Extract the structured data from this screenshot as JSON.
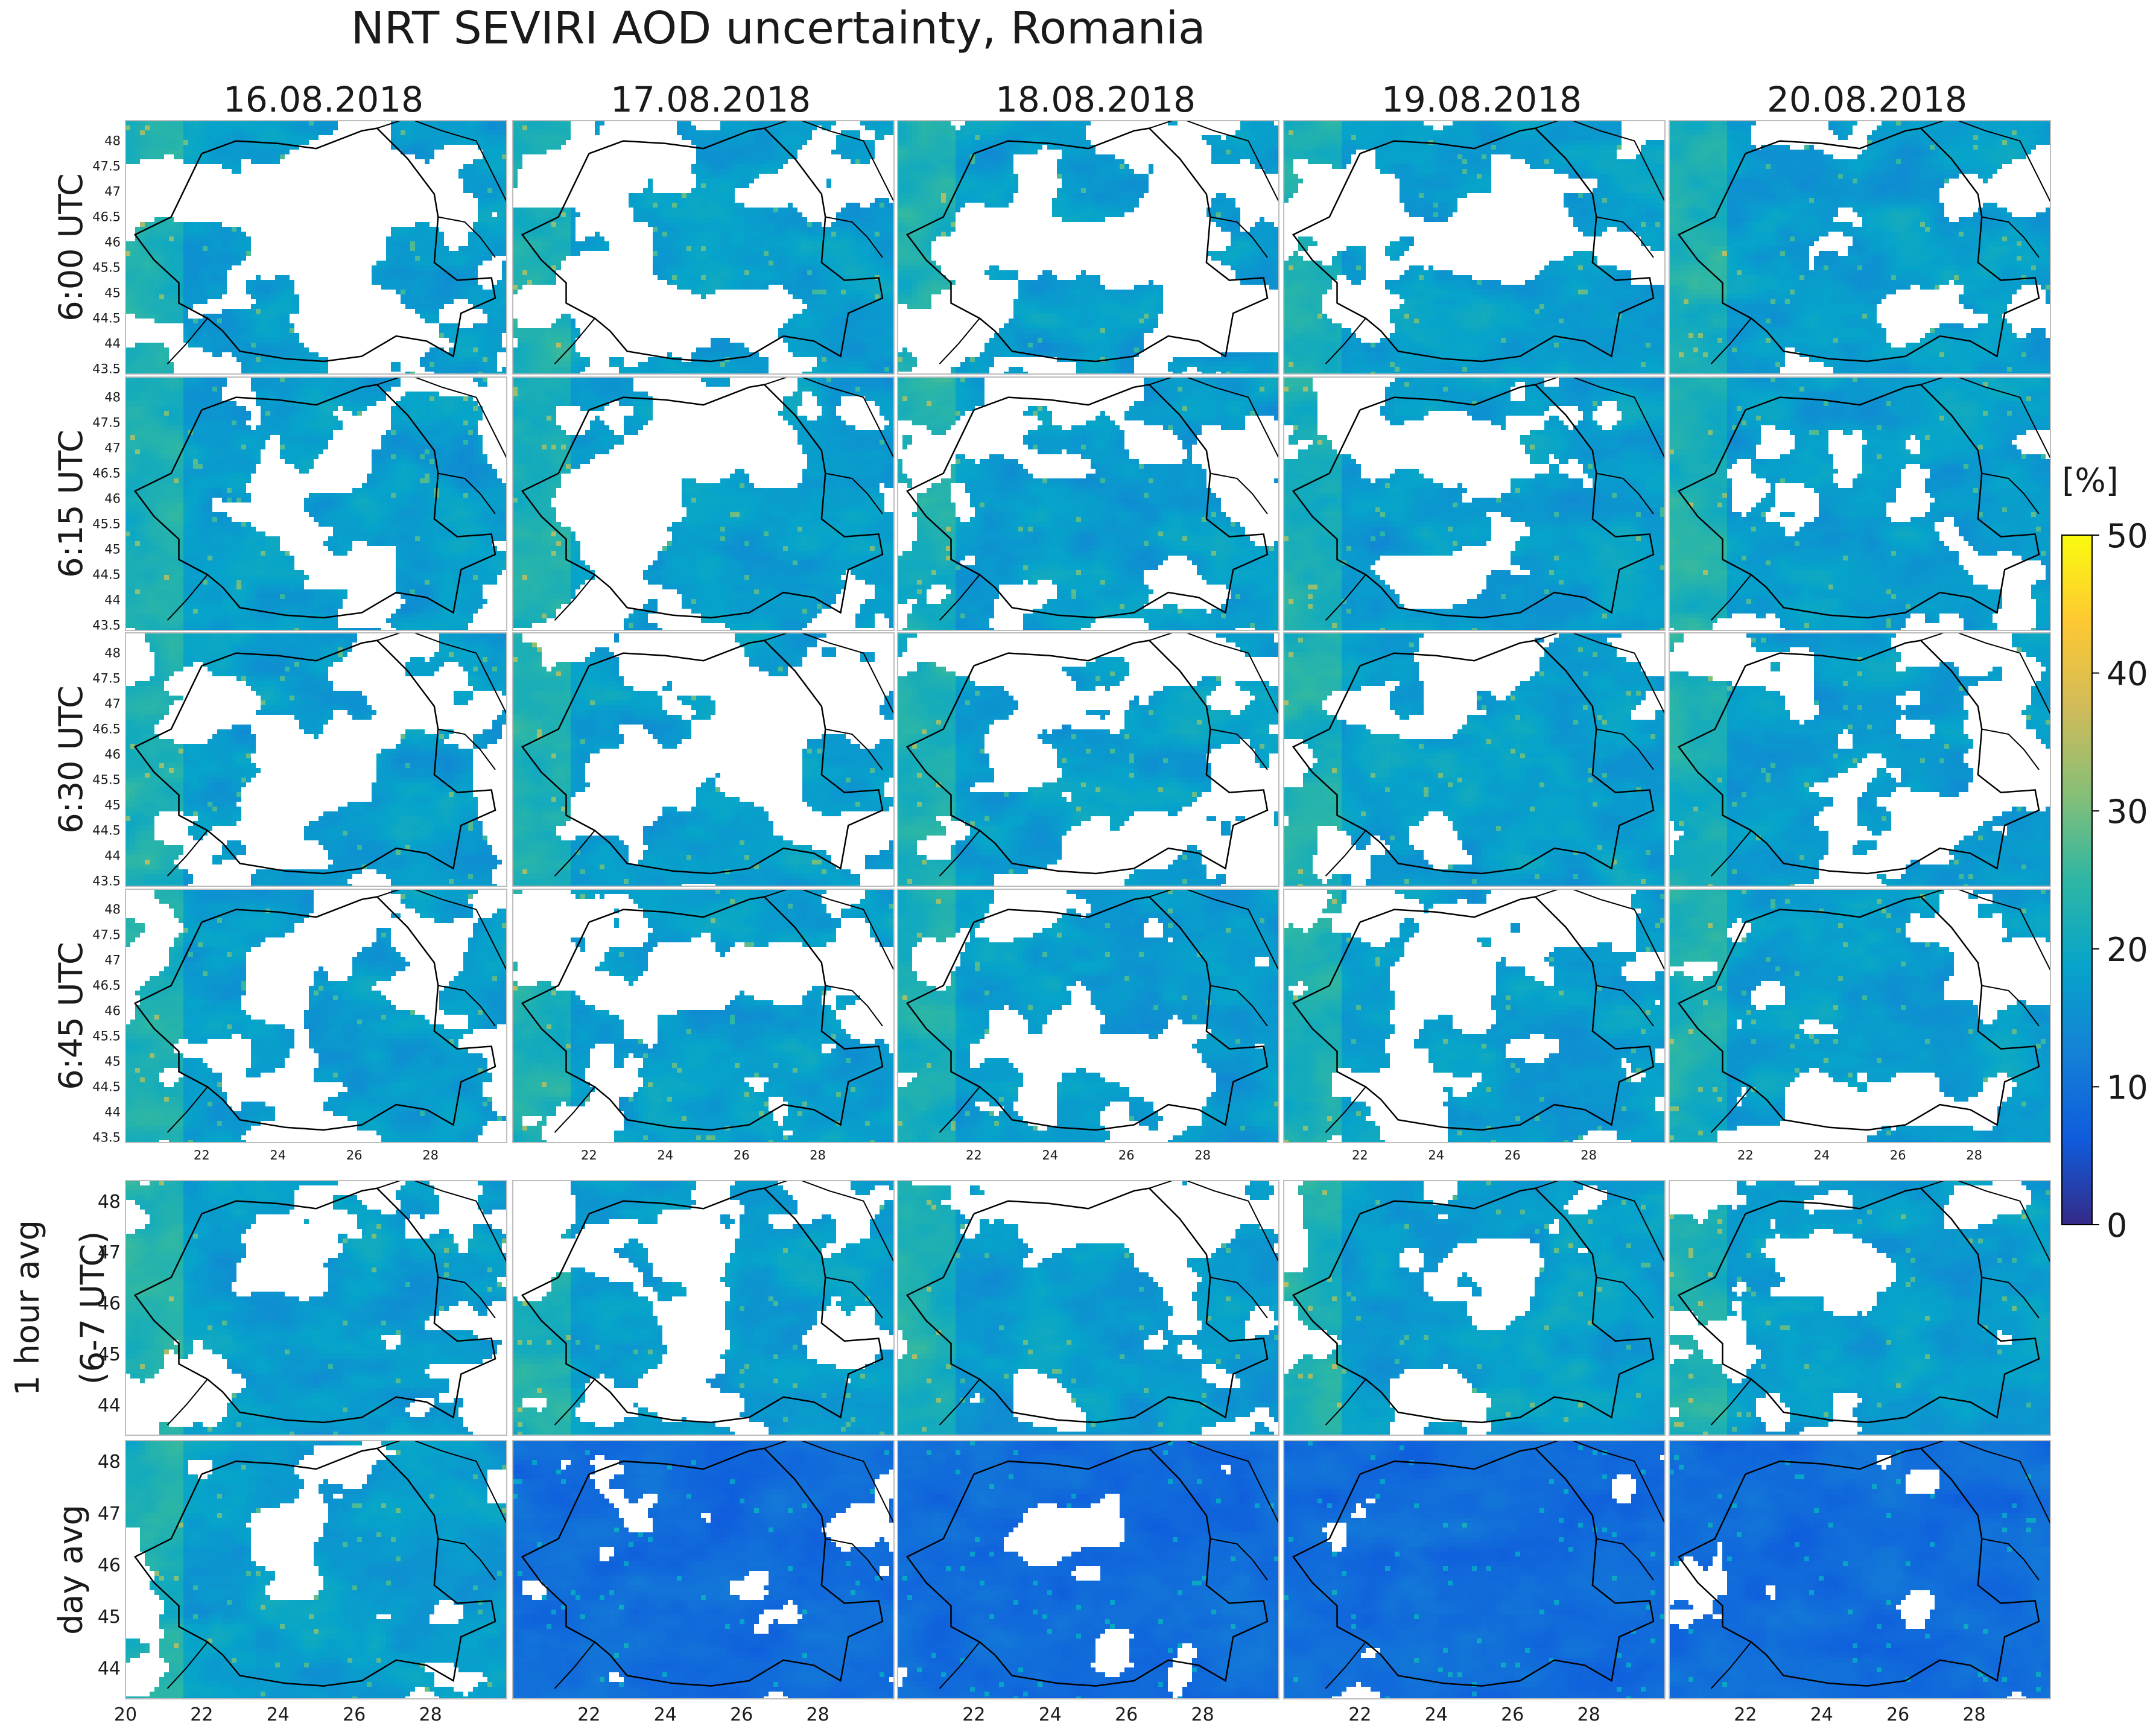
{
  "title": "NRT SEVIRI AOD uncertainty, Romania",
  "columns": [
    "16.08.2018",
    "17.08.2018",
    "18.08.2018",
    "19.08.2018",
    "20.08.2018"
  ],
  "rows": [
    {
      "label": [
        "6:00 UTC"
      ],
      "kind": "15min"
    },
    {
      "label": [
        "6:15 UTC"
      ],
      "kind": "15min"
    },
    {
      "label": [
        "6:30 UTC"
      ],
      "kind": "15min"
    },
    {
      "label": [
        "6:45 UTC"
      ],
      "kind": "15min"
    },
    {
      "label": [
        "1 hour avg",
        "(6-7 UTC)"
      ],
      "kind": "hour"
    },
    {
      "label": [
        "day avg"
      ],
      "kind": "day"
    }
  ],
  "map_axes": {
    "lon_range": [
      20,
      30
    ],
    "lat_range": [
      43.4,
      48.4
    ],
    "lat_ticks_small": [
      "48",
      "47.5",
      "47",
      "46.5",
      "46",
      "45.5",
      "45",
      "44.5",
      "44",
      "43.5"
    ],
    "lat_ticks_large": [
      "48",
      "47",
      "46",
      "45",
      "44"
    ],
    "lon_ticks": [
      "22",
      "24",
      "26",
      "28"
    ],
    "lon_ticks_bottom_left": [
      "20",
      "22",
      "24",
      "26",
      "28"
    ]
  },
  "colorbar": {
    "label": "[%]",
    "ticks": [
      "0",
      "10",
      "20",
      "30",
      "40",
      "50"
    ],
    "range": [
      0,
      50
    ],
    "colormap": "parula",
    "colors": [
      "#352a87",
      "#0f5cdd",
      "#1481d6",
      "#06a4ca",
      "#2eb7a4",
      "#87bf77",
      "#d1bb59",
      "#fec832",
      "#f9fb0e"
    ]
  },
  "palette": {
    "base_15min": "#2391c5",
    "base_day_late": "#2f56dc",
    "no_data": "#ffffff",
    "border_line": "#000000"
  }
}
